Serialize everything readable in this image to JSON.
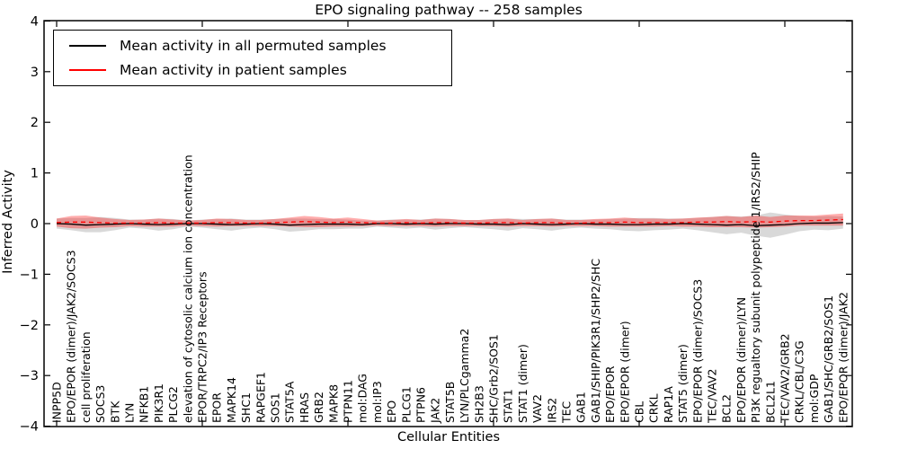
{
  "window": {
    "background": "#ffffff"
  },
  "chart_data": {
    "type": "line",
    "title": "EPO signaling pathway -- 258 samples",
    "xlabel": "Cellular Entities",
    "ylabel": "Inferred Activity",
    "ylim": [
      -4,
      4
    ],
    "yticks": [
      4,
      3,
      2,
      1,
      0,
      -1,
      -2,
      -3,
      -4
    ],
    "xtick_positions": [
      0,
      10,
      20,
      30,
      40,
      50
    ],
    "grid": false,
    "legend_position": "upper left",
    "categories": [
      "INPP5D",
      "EPO/EPOR (dimer)/JAK2/SOCS3",
      "cell proliferation",
      "SOCS3",
      "BTK",
      "LYN",
      "NFKB1",
      "PIK3R1",
      "PLCG2",
      "elevation of cytosolic calcium ion concentration",
      "EPOR/TRPC2/IP3 Receptors",
      "EPOR",
      "MAPK14",
      "SHC1",
      "RAPGEF1",
      "SOS1",
      "STAT5A",
      "HRAS",
      "GRB2",
      "MAPK8",
      "PTPN11",
      "mol:DAG",
      "mol:IP3",
      "EPO",
      "PLCG1",
      "PTPN6",
      "JAK2",
      "STAT5B",
      "LYN/PLCgamma2",
      "SH2B3",
      "SHC/Grb2/SOS1",
      "STAT1",
      "STAT1 (dimer)",
      "VAV2",
      "IRS2",
      "TEC",
      "GAB1",
      "GAB1/SHIP/PIK3R1/SHP2/SHC",
      "EPO/EPOR",
      "EPO/EPOR (dimer)",
      "CBL",
      "CRKL",
      "RAP1A",
      "STAT5 (dimer)",
      "EPO/EPOR (dimer)/SOCS3",
      "TEC/VAV2",
      "BCL2",
      "EPO/EPOR (dimer)/LYN",
      "PI3K regualtory subunit polypeptide 1/IRS2/SHIP",
      "BCL2L1",
      "TEC/VAV2/GRB2",
      "CRKL/CBL/C3G",
      "mol:GDP",
      "GAB1/SHC/GRB2/SOS1",
      "EPO/EPOR (dimer)/JAK2"
    ],
    "series": [
      {
        "key": "permuted",
        "name": "Mean activity in all permuted samples",
        "line_color": "#000000",
        "line_style": "solid",
        "band_color": "#000000",
        "band_opacity": 0.15,
        "values": [
          0.0,
          -0.01,
          -0.03,
          -0.02,
          -0.01,
          0.0,
          -0.01,
          -0.02,
          -0.01,
          0.0,
          0.0,
          -0.01,
          -0.02,
          -0.01,
          0.0,
          -0.01,
          -0.03,
          -0.02,
          -0.01,
          -0.01,
          -0.01,
          -0.02,
          0.0,
          0.0,
          -0.01,
          0.0,
          -0.01,
          0.0,
          0.0,
          -0.01,
          -0.01,
          -0.02,
          0.0,
          -0.01,
          -0.02,
          -0.01,
          0.0,
          -0.01,
          -0.01,
          -0.02,
          -0.02,
          -0.01,
          -0.01,
          0.0,
          -0.01,
          -0.02,
          -0.03,
          -0.02,
          -0.04,
          -0.03,
          -0.02,
          0.0,
          0.01,
          0.01,
          0.02
        ],
        "band": [
          0.1,
          0.12,
          0.14,
          0.15,
          0.12,
          0.08,
          0.09,
          0.12,
          0.1,
          0.06,
          0.08,
          0.1,
          0.12,
          0.09,
          0.08,
          0.1,
          0.13,
          0.12,
          0.1,
          0.1,
          0.09,
          0.08,
          0.06,
          0.08,
          0.09,
          0.08,
          0.11,
          0.09,
          0.07,
          0.08,
          0.1,
          0.12,
          0.09,
          0.1,
          0.12,
          0.09,
          0.08,
          0.09,
          0.1,
          0.12,
          0.13,
          0.12,
          0.11,
          0.1,
          0.12,
          0.15,
          0.18,
          0.16,
          0.2,
          0.25,
          0.2,
          0.15,
          0.13,
          0.14,
          0.12
        ]
      },
      {
        "key": "patient",
        "name": "Mean activity in patient samples",
        "line_color": "#ff0000",
        "line_style": "dashed",
        "band_color": "#ff0000",
        "band_opacity": 0.32,
        "values": [
          0.02,
          0.03,
          0.03,
          0.02,
          0.01,
          0.01,
          0.01,
          0.02,
          0.01,
          0.01,
          0.01,
          0.02,
          0.02,
          0.01,
          0.01,
          0.02,
          0.03,
          0.04,
          0.03,
          0.02,
          0.03,
          0.02,
          0.01,
          0.01,
          0.02,
          0.01,
          0.02,
          0.02,
          0.01,
          0.01,
          0.02,
          0.02,
          0.01,
          0.02,
          0.02,
          0.01,
          0.01,
          0.02,
          0.02,
          0.03,
          0.02,
          0.02,
          0.02,
          0.02,
          0.03,
          0.03,
          0.04,
          0.03,
          0.04,
          0.03,
          0.05,
          0.06,
          0.06,
          0.07,
          0.08
        ],
        "band": [
          0.08,
          0.12,
          0.13,
          0.1,
          0.08,
          0.06,
          0.07,
          0.08,
          0.07,
          0.05,
          0.06,
          0.08,
          0.07,
          0.06,
          0.06,
          0.07,
          0.09,
          0.11,
          0.1,
          0.08,
          0.09,
          0.07,
          0.05,
          0.06,
          0.07,
          0.06,
          0.08,
          0.07,
          0.06,
          0.06,
          0.07,
          0.08,
          0.06,
          0.07,
          0.08,
          0.06,
          0.06,
          0.07,
          0.08,
          0.09,
          0.08,
          0.08,
          0.07,
          0.08,
          0.09,
          0.1,
          0.11,
          0.1,
          0.12,
          0.1,
          0.11,
          0.1,
          0.1,
          0.11,
          0.12
        ]
      }
    ]
  }
}
